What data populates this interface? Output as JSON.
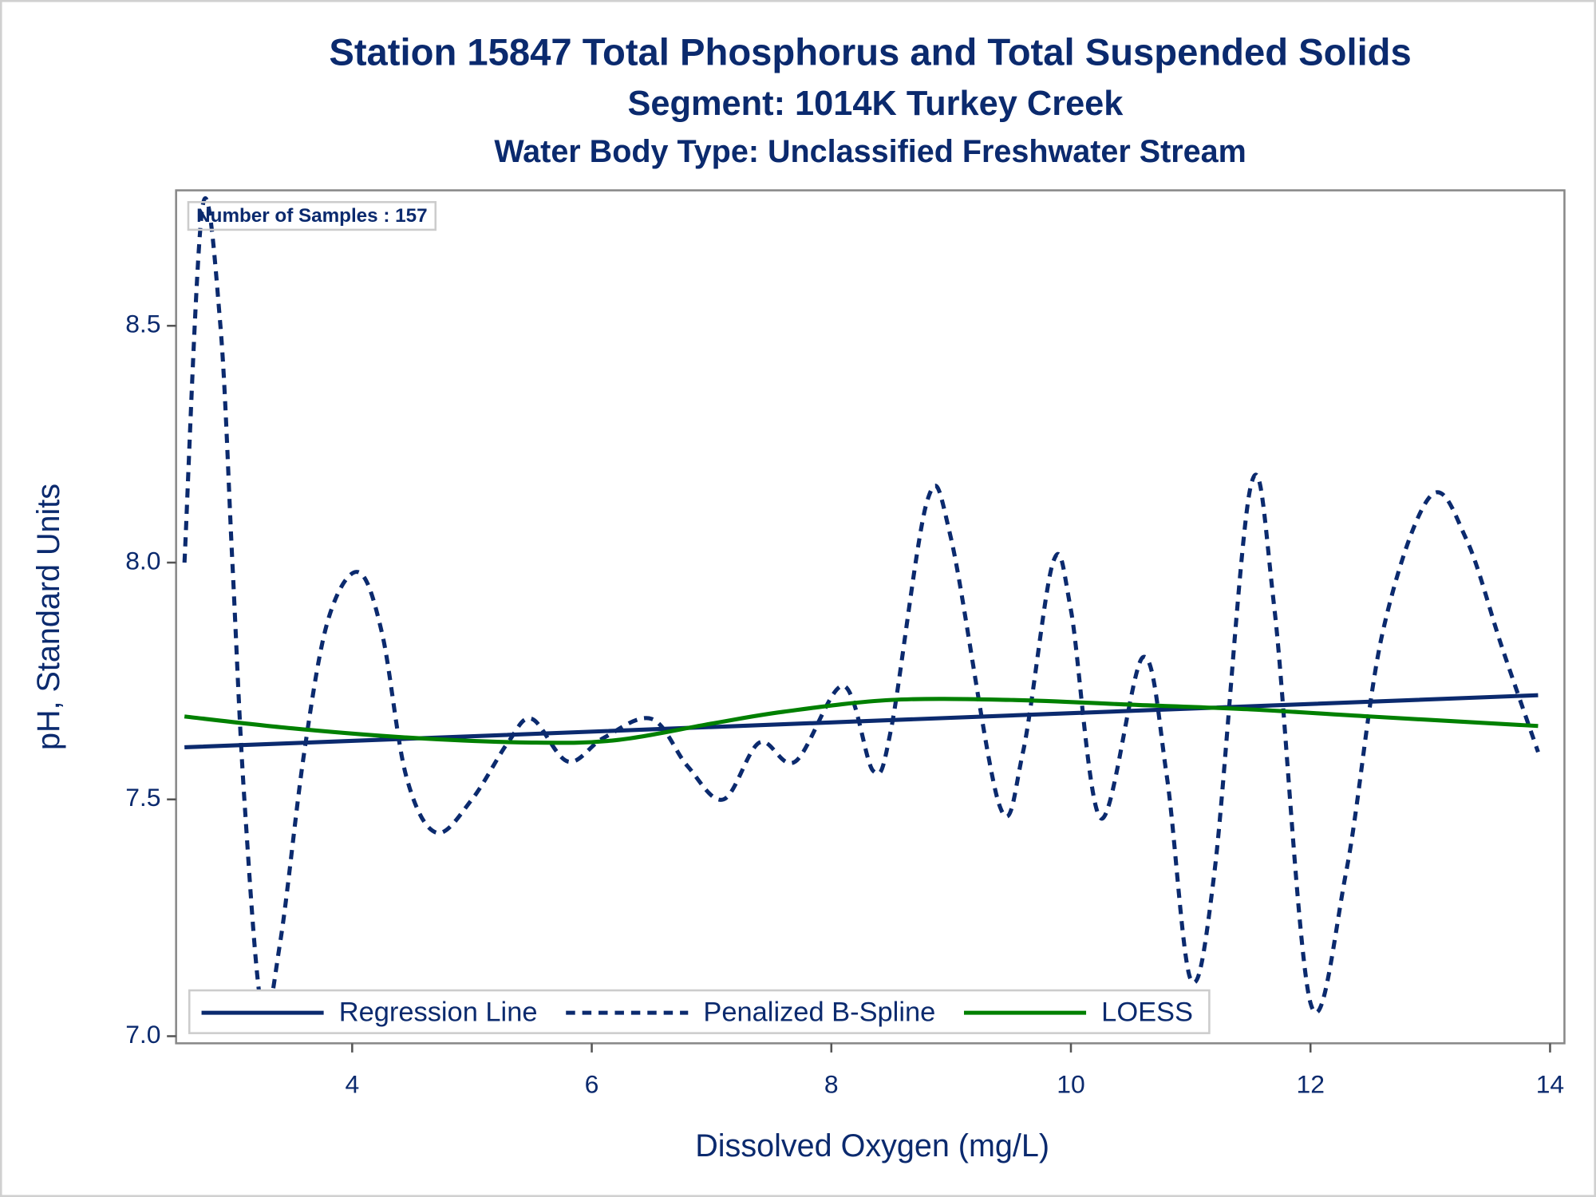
{
  "chart_data": {
    "type": "line",
    "title": "Station 15847  Total Phosphorus and Total Suspended Solids",
    "subtitle": "Segment: 1014K  Turkey Creek",
    "subtitle2": "Water Body Type: Unclassified Freshwater Stream",
    "annotation": "Number of Samples : 157",
    "xlabel": "Dissolved Oxygen (mg/L)",
    "ylabel": "pH, Standard Units",
    "xlim": [
      2.53,
      14.12
    ],
    "ylim": [
      6.985,
      8.786
    ],
    "xticks": [
      4,
      6,
      8,
      10,
      12,
      14
    ],
    "yticks": [
      {
        "value": 7.0,
        "label": "7.0"
      },
      7.5,
      {
        "value": 8.0,
        "label": "8.0"
      },
      8.5
    ],
    "legend": "bottom-left",
    "series": [
      {
        "name": "Regression Line",
        "color": "#0b2a6e",
        "style": "solid",
        "x": [
          2.6,
          13.9
        ],
        "values": [
          7.61,
          7.72
        ]
      },
      {
        "name": "Penalized B-Spline",
        "color": "#0b2a6e",
        "style": "dashed",
        "x": [
          2.6,
          2.75,
          2.9,
          3.0,
          3.1,
          3.25,
          3.4,
          3.6,
          3.8,
          4.05,
          4.25,
          4.45,
          4.7,
          5.0,
          5.3,
          5.5,
          5.8,
          6.1,
          6.5,
          6.8,
          7.1,
          7.4,
          7.7,
          8.1,
          8.35,
          8.5,
          8.8,
          9.0,
          9.4,
          9.6,
          9.85,
          10.0,
          10.25,
          10.6,
          10.8,
          11.0,
          11.2,
          11.5,
          11.7,
          12.0,
          12.3,
          12.6,
          13.0,
          13.3,
          13.6,
          13.9
        ],
        "values": [
          8.0,
          8.75,
          8.5,
          8.0,
          7.5,
          7.05,
          7.2,
          7.6,
          7.88,
          7.98,
          7.85,
          7.55,
          7.43,
          7.5,
          7.62,
          7.67,
          7.58,
          7.63,
          7.67,
          7.57,
          7.5,
          7.62,
          7.58,
          7.74,
          7.56,
          7.65,
          8.13,
          8.05,
          7.49,
          7.6,
          8.0,
          7.9,
          7.46,
          7.8,
          7.55,
          7.12,
          7.35,
          8.16,
          7.9,
          7.07,
          7.35,
          7.85,
          8.14,
          8.05,
          7.82,
          7.6
        ]
      },
      {
        "name": "LOESS",
        "color": "#008000",
        "style": "solid",
        "x": [
          2.6,
          3.5,
          4.5,
          5.5,
          6.2,
          7.0,
          7.6,
          8.5,
          9.5,
          10.5,
          11.5,
          12.5,
          13.9
        ],
        "values": [
          7.675,
          7.65,
          7.63,
          7.62,
          7.625,
          7.66,
          7.685,
          7.71,
          7.71,
          7.7,
          7.69,
          7.675,
          7.655
        ]
      }
    ]
  }
}
